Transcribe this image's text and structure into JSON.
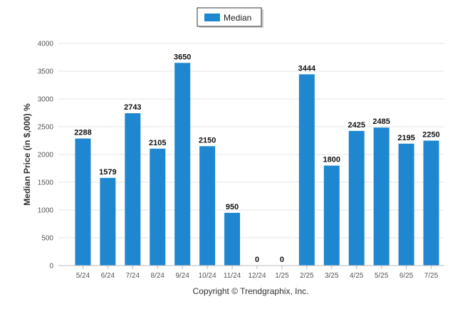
{
  "chart_data": {
    "type": "bar",
    "categories": [
      "5/24",
      "6/24",
      "7/24",
      "8/24",
      "9/24",
      "10/24",
      "11/24",
      "12/24",
      "1/25",
      "2/25",
      "3/25",
      "4/25",
      "5/25",
      "6/25",
      "7/25"
    ],
    "series": [
      {
        "name": "Median",
        "values": [
          2288,
          1579,
          2743,
          2105,
          3650,
          2150,
          950,
          0,
          0,
          3444,
          1800,
          2425,
          2485,
          2195,
          2250
        ]
      }
    ],
    "ylabel": "Median Price (in $,000) %",
    "xlabel": "",
    "ylim": [
      0,
      4000
    ],
    "yticks": [
      0,
      500,
      1000,
      1500,
      2000,
      2500,
      3000,
      3500,
      4000
    ],
    "grid": true,
    "legend_position": "top-center",
    "bar_color": "#1f87d0"
  },
  "footer": {
    "copyright": "Copyright © Trendgraphix, Inc."
  }
}
